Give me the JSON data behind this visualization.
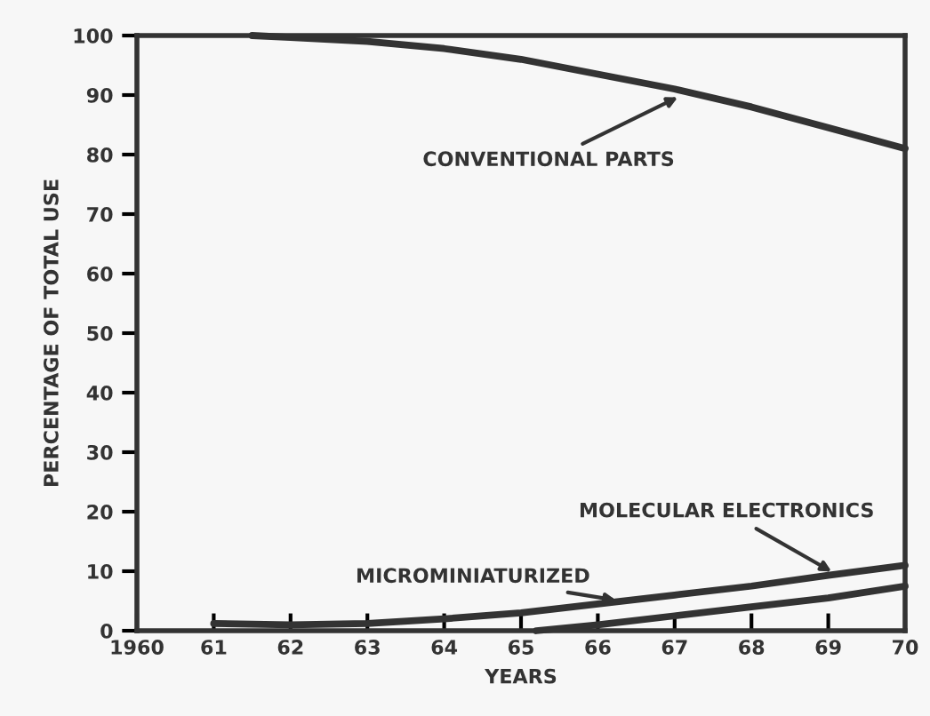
{
  "chart_data": {
    "type": "line",
    "xlabel": "YEARS",
    "ylabel": "PERCENTAGE OF TOTAL USE",
    "xlim": [
      1960,
      1970
    ],
    "ylim": [
      0,
      100
    ],
    "xticks": [
      {
        "value": 1960,
        "label": "1960"
      },
      {
        "value": 1961,
        "label": "61"
      },
      {
        "value": 1962,
        "label": "62"
      },
      {
        "value": 1963,
        "label": "63"
      },
      {
        "value": 1964,
        "label": "64"
      },
      {
        "value": 1965,
        "label": "65"
      },
      {
        "value": 1966,
        "label": "66"
      },
      {
        "value": 1967,
        "label": "67"
      },
      {
        "value": 1968,
        "label": "68"
      },
      {
        "value": 1969,
        "label": "69"
      },
      {
        "value": 1970,
        "label": "70"
      }
    ],
    "yticks": [
      0,
      10,
      20,
      30,
      40,
      50,
      60,
      70,
      80,
      90,
      100
    ],
    "grid": false,
    "marker": "none",
    "line_style": "solid",
    "series": [
      {
        "color": "#333333",
        "x": [
          1961.5,
          1962,
          1963,
          1964,
          1965,
          1966,
          1967,
          1968,
          1969,
          1970
        ],
        "values": [
          100,
          99.7,
          99,
          97.8,
          96,
          93.5,
          91,
          88,
          84.5,
          81
        ]
      },
      {
        "color": "#333333",
        "x": [
          1961,
          1962,
          1963,
          1964,
          1965,
          1966,
          1967,
          1968,
          1969,
          1970
        ],
        "values": [
          1.2,
          1,
          1.2,
          2,
          3,
          4.5,
          6,
          7.5,
          9.3,
          11
        ]
      },
      {
        "color": "#333333",
        "x": [
          1965.2,
          1966,
          1967,
          1968,
          1969,
          1970
        ],
        "values": [
          0,
          1,
          2.5,
          4,
          5.5,
          7.5
        ]
      }
    ],
    "annotations": [
      {
        "text": "CONVENTIONAL PARTS",
        "x": 1967.1,
        "y": 90
      },
      {
        "text": "MOLECULAR ELECTRONICS",
        "x": 1969.1,
        "y": 9.5
      },
      {
        "text": "MICROMINIATURIZED",
        "x": 1966.3,
        "y": 5
      }
    ]
  }
}
